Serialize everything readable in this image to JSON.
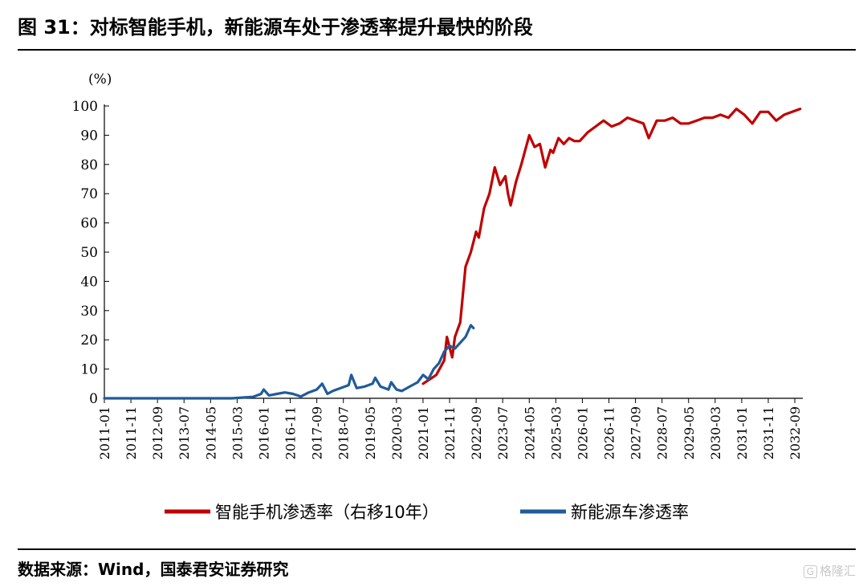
{
  "figure": {
    "title": "图 31：对标智能手机，新能源车处于渗透率提升最快的阶段",
    "source": "数据来源：Wind，国泰君安证券研究",
    "watermark": "格隆汇",
    "watermark_icon": "G"
  },
  "chart_data": {
    "type": "line",
    "title": "图 31：对标智能手机，新能源车处于渗透率提升最快的阶段",
    "y_unit_label": "(%)",
    "xlabel": "",
    "ylabel": "(%)",
    "ylim": [
      0,
      100
    ],
    "yticks": [
      0,
      10,
      20,
      30,
      40,
      50,
      60,
      70,
      80,
      90,
      100
    ],
    "xlim": [
      "2011-01",
      "2032-12"
    ],
    "x_tick_labels": [
      "2011-01",
      "2011-11",
      "2012-09",
      "2013-07",
      "2014-05",
      "2015-03",
      "2016-01",
      "2016-11",
      "2017-09",
      "2018-07",
      "2019-05",
      "2020-03",
      "2021-01",
      "2021-11",
      "2022-09",
      "2023-07",
      "2024-05",
      "2025-03",
      "2026-01",
      "2026-11",
      "2027-09",
      "2028-07",
      "2029-05",
      "2030-03",
      "2031-01",
      "2031-11",
      "2032-09"
    ],
    "grid": false,
    "legend_position": "bottom",
    "series": [
      {
        "name": "智能手机渗透率（右移10年）",
        "color": "#c00000",
        "x": [
          "2021-01",
          "2021-06",
          "2021-09",
          "2021-10",
          "2021-12",
          "2022-01",
          "2022-03",
          "2022-05",
          "2022-07",
          "2022-09",
          "2022-10",
          "2022-12",
          "2023-02",
          "2023-04",
          "2023-06",
          "2023-08",
          "2023-09",
          "2023-10",
          "2023-12",
          "2024-02",
          "2024-05",
          "2024-07",
          "2024-09",
          "2024-11",
          "2025-01",
          "2025-02",
          "2025-04",
          "2025-06",
          "2025-08",
          "2025-10",
          "2025-12",
          "2026-03",
          "2026-06",
          "2026-09",
          "2026-12",
          "2027-03",
          "2027-06",
          "2027-09",
          "2027-12",
          "2028-02",
          "2028-05",
          "2028-08",
          "2028-11",
          "2029-02",
          "2029-05",
          "2029-08",
          "2029-11",
          "2030-02",
          "2030-05",
          "2030-08",
          "2030-11",
          "2031-02",
          "2031-05",
          "2031-08",
          "2031-11",
          "2032-02",
          "2032-05",
          "2032-08",
          "2032-11"
        ],
        "y": [
          5,
          8,
          13,
          21,
          14,
          21,
          26,
          45,
          50,
          57,
          55,
          65,
          70,
          79,
          73,
          76,
          70,
          66,
          74,
          80,
          90,
          86,
          87,
          79,
          85,
          84,
          89,
          87,
          89,
          88,
          88,
          91,
          93,
          95,
          93,
          94,
          96,
          95,
          94,
          89,
          95,
          95,
          96,
          94,
          94,
          95,
          96,
          96,
          97,
          96,
          99,
          97,
          94,
          98,
          98,
          95,
          97,
          98,
          99
        ]
      },
      {
        "name": "新能源车渗透率",
        "color": "#1f5c99",
        "x": [
          "2011-01",
          "2012-01",
          "2013-01",
          "2014-01",
          "2015-01",
          "2015-06",
          "2015-09",
          "2015-12",
          "2016-01",
          "2016-03",
          "2016-06",
          "2016-09",
          "2016-12",
          "2017-03",
          "2017-06",
          "2017-09",
          "2017-11",
          "2018-01",
          "2018-03",
          "2018-06",
          "2018-09",
          "2018-10",
          "2018-12",
          "2019-03",
          "2019-06",
          "2019-07",
          "2019-09",
          "2019-12",
          "2020-01",
          "2020-03",
          "2020-05",
          "2020-08",
          "2020-11",
          "2021-01",
          "2021-03",
          "2021-05",
          "2021-07",
          "2021-09",
          "2021-11",
          "2022-01",
          "2022-03",
          "2022-05",
          "2022-07",
          "2022-08"
        ],
        "y": [
          0,
          0,
          0,
          0,
          0,
          0.3,
          0.5,
          1.5,
          3,
          1,
          1.5,
          2,
          1.5,
          0.6,
          2,
          3,
          5,
          1.5,
          2.5,
          3.5,
          4.5,
          8,
          3.5,
          4,
          5,
          7,
          4,
          3,
          5.5,
          3,
          2.5,
          4,
          5.5,
          8,
          6.5,
          10,
          12,
          16,
          18,
          17,
          19,
          21,
          25,
          24
        ]
      }
    ]
  }
}
